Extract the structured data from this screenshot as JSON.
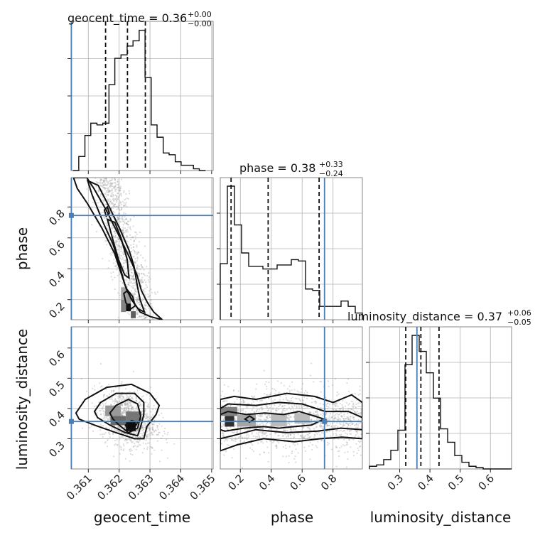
{
  "chart_data": {
    "type": "corner",
    "parameters": [
      "geocent_time",
      "phase",
      "luminosity_distance"
    ],
    "truth": {
      "geocent_time": 0.36045,
      "phase": 0.745,
      "luminosity_distance": 0.357
    },
    "titles": [
      {
        "text": "geocent_time = 0.36",
        "sup": "+0.00",
        "sub": "−0.00"
      },
      {
        "text": "phase = 0.38",
        "sup": "+0.33",
        "sub": "−0.24"
      },
      {
        "text": "luminosity_distance = 0.37",
        "sup": "+0.06",
        "sub": "−0.05"
      }
    ],
    "axis_labels": {
      "x": [
        "geocent_time",
        "phase",
        "luminosity_distance"
      ],
      "y": [
        "phase",
        "luminosity_distance"
      ]
    },
    "ranges": {
      "geocent_time": [
        0.36044,
        0.36505
      ],
      "phase": [
        0.07,
        0.99
      ],
      "luminosity_distance": [
        0.2,
        0.67
      ]
    },
    "ticks": {
      "geocent_time": {
        "values": [
          0.361,
          0.362,
          0.363,
          0.364,
          0.365
        ],
        "labels": [
          "0.361",
          "0.362",
          "0.363",
          "0.364",
          "0.365"
        ]
      },
      "phase": {
        "values": [
          0.2,
          0.4,
          0.6,
          0.8
        ],
        "labels": [
          "0.2",
          "0.4",
          "0.6",
          "0.8"
        ]
      },
      "luminosity_distance": {
        "values": [
          0.3,
          0.4,
          0.5,
          0.6
        ],
        "labels": [
          "0.3",
          "0.4",
          "0.5",
          "0.6"
        ]
      }
    },
    "quantiles": {
      "geocent_time": [
        0.36156,
        0.36227,
        0.36285
      ],
      "phase": [
        0.14,
        0.38,
        0.71
      ],
      "luminosity_distance": [
        0.32,
        0.37,
        0.43
      ]
    },
    "histograms": {
      "geocent_time": {
        "edges": [
          0.3605,
          0.36069,
          0.36089,
          0.36108,
          0.36128,
          0.36147,
          0.36167,
          0.36186,
          0.36206,
          0.36226,
          0.36245,
          0.36265,
          0.36284,
          0.36304,
          0.36323,
          0.36343,
          0.36362,
          0.36382,
          0.36401,
          0.36421,
          0.36441,
          0.3646,
          0.3648
        ],
        "counts": [
          0,
          8,
          20,
          27,
          26,
          27,
          49,
          64,
          66,
          71,
          74,
          80,
          53,
          26,
          19,
          10,
          9,
          5,
          3,
          3,
          1,
          0
        ]
      },
      "phase": {
        "edges": [
          0.07,
          0.116,
          0.162,
          0.208,
          0.254,
          0.3,
          0.346,
          0.392,
          0.438,
          0.484,
          0.53,
          0.576,
          0.622,
          0.668,
          0.714,
          0.76,
          0.806,
          0.852,
          0.898,
          0.944,
          0.99
        ],
        "counts": [
          42,
          100,
          71,
          50,
          40,
          40,
          38,
          38,
          41,
          41,
          45,
          44,
          23,
          22,
          10,
          10,
          10,
          14,
          10,
          5
        ]
      },
      "luminosity_distance": {
        "edges": [
          0.2,
          0.2235,
          0.247,
          0.2705,
          0.294,
          0.3175,
          0.341,
          0.3645,
          0.388,
          0.4115,
          0.435,
          0.4585,
          0.482,
          0.5055,
          0.529,
          0.5525,
          0.576,
          0.5995,
          0.623,
          0.6465,
          0.67
        ],
        "counts": [
          2,
          3,
          7,
          14,
          29,
          78,
          100,
          88,
          72,
          53,
          30,
          20,
          10,
          5,
          2,
          1,
          0,
          0,
          0,
          0
        ]
      }
    },
    "density_cells": [
      {
        "panel": "geocent_time-phase",
        "x": [
          0.36222,
          0.36238
        ],
        "y": [
          0.125,
          0.175
        ],
        "level": 0.95
      },
      {
        "panel": "geocent_time-phase",
        "x": [
          0.36238,
          0.36254
        ],
        "y": [
          0.08,
          0.125
        ],
        "level": 0.6
      },
      {
        "panel": "geocent_time-phase",
        "x": [
          0.36206,
          0.36222
        ],
        "y": [
          0.12,
          0.2
        ],
        "level": 0.45
      },
      {
        "panel": "geocent_time-phase",
        "x": [
          0.36206,
          0.36222
        ],
        "y": [
          0.2,
          0.28
        ],
        "level": 0.3
      },
      {
        "panel": "geocent_time-phase",
        "x": [
          0.36222,
          0.36238
        ],
        "y": [
          0.175,
          0.25
        ],
        "level": 0.35
      },
      {
        "panel": "geocent_time-luminosity_distance",
        "x": [
          0.36222,
          0.36254
        ],
        "y": [
          0.325,
          0.355
        ],
        "level": 0.95
      },
      {
        "panel": "geocent_time-luminosity_distance",
        "x": [
          0.36172,
          0.36222
        ],
        "y": [
          0.345,
          0.375
        ],
        "level": 0.55
      },
      {
        "panel": "geocent_time-luminosity_distance",
        "x": [
          0.36222,
          0.36272
        ],
        "y": [
          0.355,
          0.39
        ],
        "level": 0.5
      },
      {
        "panel": "geocent_time-luminosity_distance",
        "x": [
          0.36155,
          0.36205
        ],
        "y": [
          0.375,
          0.41
        ],
        "level": 0.35
      },
      {
        "panel": "phase-luminosity_distance",
        "x": [
          0.1,
          0.16
        ],
        "y": [
          0.34,
          0.375
        ],
        "level": 0.8
      },
      {
        "panel": "phase-luminosity_distance",
        "x": [
          0.07,
          0.18
        ],
        "y": [
          0.375,
          0.405
        ],
        "level": 0.45
      },
      {
        "panel": "phase-luminosity_distance",
        "x": [
          0.18,
          0.3
        ],
        "y": [
          0.34,
          0.38
        ],
        "level": 0.3
      },
      {
        "panel": "phase-luminosity_distance",
        "x": [
          0.4,
          0.5
        ],
        "y": [
          0.34,
          0.38
        ],
        "level": 0.2
      },
      {
        "panel": "phase-luminosity_distance",
        "x": [
          0.55,
          0.65
        ],
        "y": [
          0.35,
          0.385
        ],
        "level": 0.2
      }
    ],
    "grid": true
  }
}
